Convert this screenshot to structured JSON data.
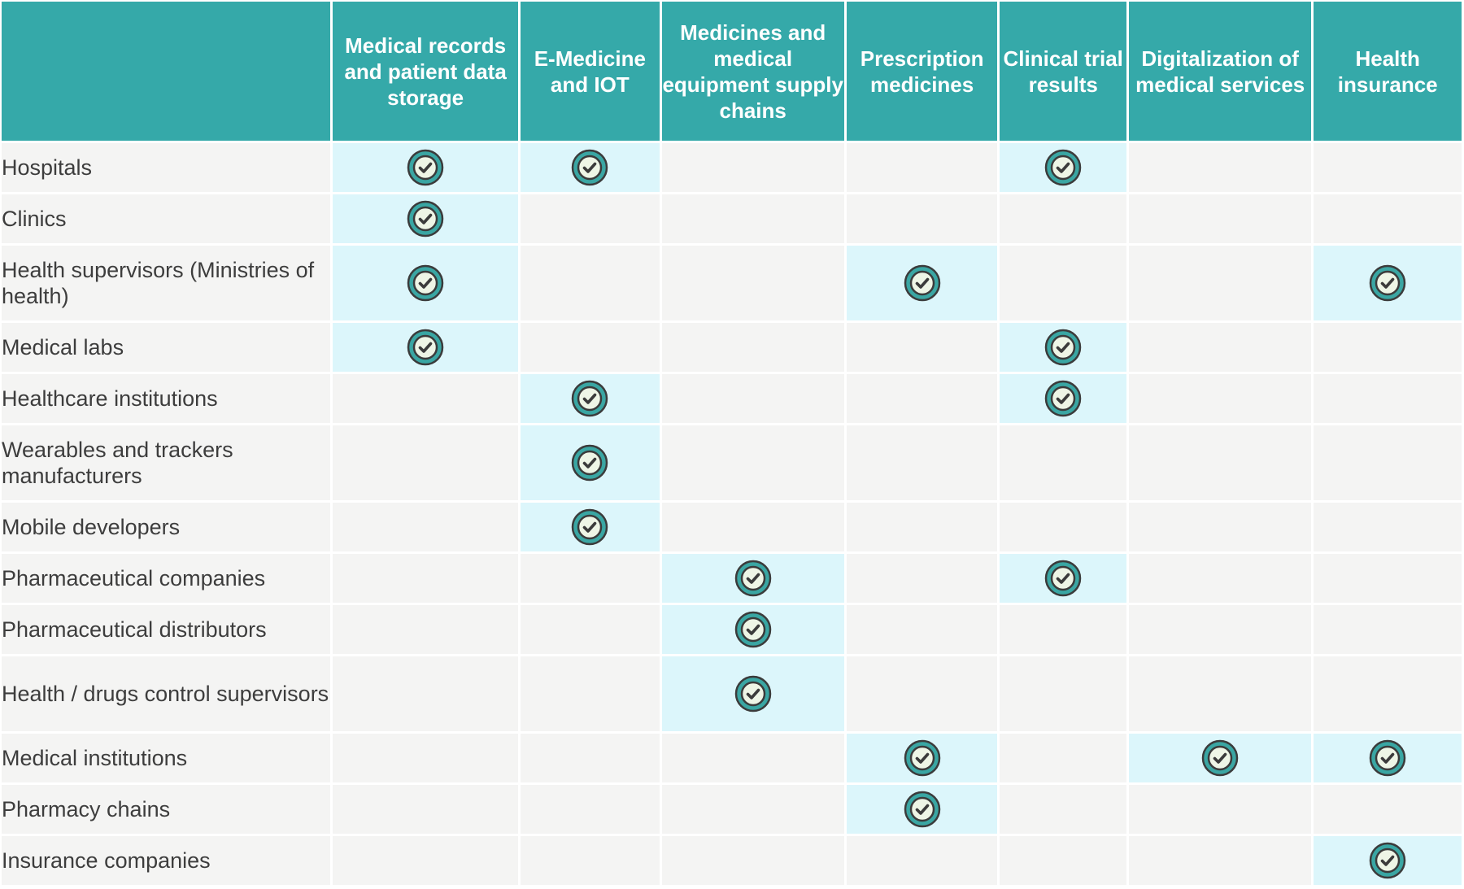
{
  "columns": [
    "Medical records and patient data storage",
    "E-Medicine and IOT",
    "Medicines and medical equipment supply chains",
    "Prescription medicines",
    "Clinical trial results",
    "Digitalization of medical services",
    "Health insurance"
  ],
  "rows": [
    {
      "label": "Hospitals",
      "checks": [
        true,
        true,
        false,
        false,
        true,
        false,
        false
      ]
    },
    {
      "label": "Clinics",
      "checks": [
        true,
        false,
        false,
        false,
        false,
        false,
        false
      ]
    },
    {
      "label": "Health supervisors (Ministries of health)",
      "checks": [
        true,
        false,
        false,
        true,
        false,
        false,
        true
      ]
    },
    {
      "label": "Medical labs",
      "checks": [
        true,
        false,
        false,
        false,
        true,
        false,
        false
      ]
    },
    {
      "label": "Healthcare institutions",
      "checks": [
        false,
        true,
        false,
        false,
        true,
        false,
        false
      ]
    },
    {
      "label": "Wearables and trackers manufacturers",
      "checks": [
        false,
        true,
        false,
        false,
        false,
        false,
        false
      ]
    },
    {
      "label": "Mobile developers",
      "checks": [
        false,
        true,
        false,
        false,
        false,
        false,
        false
      ]
    },
    {
      "label": "Pharmaceutical companies",
      "checks": [
        false,
        false,
        true,
        false,
        true,
        false,
        false
      ]
    },
    {
      "label": "Pharmaceutical distributors",
      "checks": [
        false,
        false,
        true,
        false,
        false,
        false,
        false
      ]
    },
    {
      "label": "Health / drugs control supervisors",
      "checks": [
        false,
        false,
        true,
        false,
        false,
        false,
        false
      ]
    },
    {
      "label": "Medical institutions",
      "checks": [
        false,
        false,
        false,
        true,
        false,
        true,
        true
      ]
    },
    {
      "label": "Pharmacy chains",
      "checks": [
        false,
        false,
        false,
        true,
        false,
        false,
        false
      ]
    },
    {
      "label": "Insurance companies",
      "checks": [
        false,
        false,
        false,
        false,
        false,
        false,
        true
      ]
    }
  ],
  "icons": {
    "check": "check-circle-icon"
  },
  "colors": {
    "header_bg": "#35a9a9",
    "header_text": "#ffffff",
    "cell_bg": "#f4f4f3",
    "highlight_bg": "#dcf6fb",
    "check_ring": "#3aa6a3",
    "check_outline": "#3b3b3b",
    "check_fill": "#eef5e6"
  }
}
